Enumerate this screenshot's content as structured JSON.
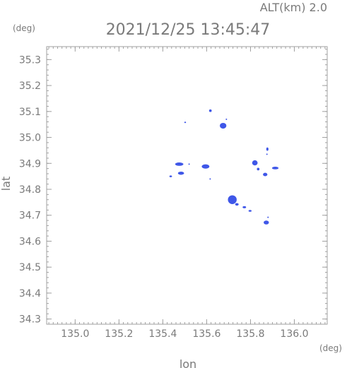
{
  "header": {
    "altitude_label": "ALT(km) 2.0",
    "timestamp": "2021/12/25 13:45:47",
    "y_unit": "(deg)",
    "x_unit": "(deg)"
  },
  "colors": {
    "axis": "#a0a0a0",
    "text": "#7a7a7a",
    "echo": "#3f57e8"
  },
  "chart_data": {
    "type": "scatter",
    "title": "2021/12/25 13:45:47",
    "xlabel": "lon",
    "ylabel": "lat",
    "xlim": [
      134.87,
      136.15
    ],
    "ylim": [
      34.28,
      35.35
    ],
    "x_ticks": [
      135.0,
      135.2,
      135.4,
      135.6,
      135.8,
      136.0
    ],
    "x_tick_labels": [
      "135.0",
      "135.2",
      "135.4",
      "135.6",
      "135.8",
      "136.0"
    ],
    "y_ticks": [
      34.3,
      34.4,
      34.5,
      34.6,
      34.7,
      34.8,
      34.9,
      35.0,
      35.1,
      35.2,
      35.3
    ],
    "y_tick_labels": [
      "34.3",
      "34.4",
      "34.5",
      "34.6",
      "34.7",
      "34.8",
      "34.9",
      "35.0",
      "35.1",
      "35.2",
      "35.3"
    ],
    "grid": false,
    "legend": "none",
    "series": [
      {
        "color": "#3f57e8",
        "points": [
          {
            "lon": 135.617,
            "lat": 35.103,
            "w": 0.012,
            "h": 0.01
          },
          {
            "lon": 135.675,
            "lat": 35.045,
            "w": 0.03,
            "h": 0.022
          },
          {
            "lon": 135.69,
            "lat": 35.07,
            "w": 0.004,
            "h": 0.004
          },
          {
            "lon": 135.502,
            "lat": 35.058,
            "w": 0.008,
            "h": 0.004
          },
          {
            "lon": 135.475,
            "lat": 34.897,
            "w": 0.038,
            "h": 0.013
          },
          {
            "lon": 135.52,
            "lat": 34.897,
            "w": 0.006,
            "h": 0.005
          },
          {
            "lon": 135.483,
            "lat": 34.862,
            "w": 0.028,
            "h": 0.012
          },
          {
            "lon": 135.436,
            "lat": 34.85,
            "w": 0.012,
            "h": 0.007
          },
          {
            "lon": 135.595,
            "lat": 34.888,
            "w": 0.035,
            "h": 0.017
          },
          {
            "lon": 135.616,
            "lat": 34.84,
            "w": 0.004,
            "h": 0.003
          },
          {
            "lon": 135.82,
            "lat": 34.902,
            "w": 0.025,
            "h": 0.02
          },
          {
            "lon": 135.835,
            "lat": 34.878,
            "w": 0.012,
            "h": 0.01
          },
          {
            "lon": 135.867,
            "lat": 34.857,
            "w": 0.02,
            "h": 0.013
          },
          {
            "lon": 135.877,
            "lat": 34.955,
            "w": 0.01,
            "h": 0.013
          },
          {
            "lon": 135.875,
            "lat": 34.935,
            "w": 0.005,
            "h": 0.005
          },
          {
            "lon": 135.913,
            "lat": 34.882,
            "w": 0.03,
            "h": 0.01
          },
          {
            "lon": 135.717,
            "lat": 34.76,
            "w": 0.04,
            "h": 0.034
          },
          {
            "lon": 135.738,
            "lat": 34.742,
            "w": 0.016,
            "h": 0.01
          },
          {
            "lon": 135.772,
            "lat": 34.731,
            "w": 0.016,
            "h": 0.008
          },
          {
            "lon": 135.798,
            "lat": 34.717,
            "w": 0.014,
            "h": 0.007
          },
          {
            "lon": 135.872,
            "lat": 34.672,
            "w": 0.024,
            "h": 0.015
          },
          {
            "lon": 135.88,
            "lat": 34.692,
            "w": 0.004,
            "h": 0.004
          }
        ]
      }
    ]
  }
}
